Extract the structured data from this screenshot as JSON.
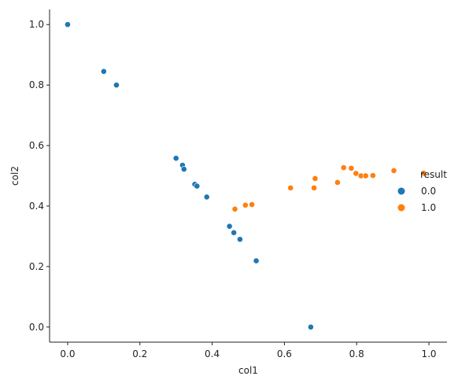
{
  "chart_data": {
    "type": "scatter",
    "title": "",
    "xlabel": "col1",
    "ylabel": "col2",
    "xlim": [
      -0.05,
      1.05
    ],
    "ylim": [
      -0.05,
      1.05
    ],
    "x_ticks": [
      "0.0",
      "0.2",
      "0.4",
      "0.6",
      "0.8",
      "1.0"
    ],
    "y_ticks": [
      "0.0",
      "0.2",
      "0.4",
      "0.6",
      "0.8",
      "1.0"
    ],
    "grid": false,
    "legend": {
      "title": "result",
      "placement": "right"
    },
    "series": [
      {
        "name": "0.0",
        "color": "#1f77b4",
        "points": [
          [
            0.0,
            1.0
          ],
          [
            0.1,
            0.845
          ],
          [
            0.135,
            0.8
          ],
          [
            0.3,
            0.558
          ],
          [
            0.318,
            0.535
          ],
          [
            0.322,
            0.522
          ],
          [
            0.352,
            0.472
          ],
          [
            0.358,
            0.466
          ],
          [
            0.385,
            0.43
          ],
          [
            0.448,
            0.333
          ],
          [
            0.46,
            0.312
          ],
          [
            0.477,
            0.29
          ],
          [
            0.522,
            0.219
          ],
          [
            0.673,
            0.0
          ]
        ]
      },
      {
        "name": "1.0",
        "color": "#ff7f0e",
        "points": [
          [
            0.463,
            0.39
          ],
          [
            0.492,
            0.403
          ],
          [
            0.51,
            0.405
          ],
          [
            0.617,
            0.46
          ],
          [
            0.682,
            0.46
          ],
          [
            0.685,
            0.491
          ],
          [
            0.747,
            0.478
          ],
          [
            0.764,
            0.527
          ],
          [
            0.785,
            0.525
          ],
          [
            0.798,
            0.508
          ],
          [
            0.812,
            0.5
          ],
          [
            0.825,
            0.5
          ],
          [
            0.845,
            0.501
          ],
          [
            0.903,
            0.517
          ],
          [
            0.985,
            0.509
          ]
        ]
      }
    ]
  }
}
